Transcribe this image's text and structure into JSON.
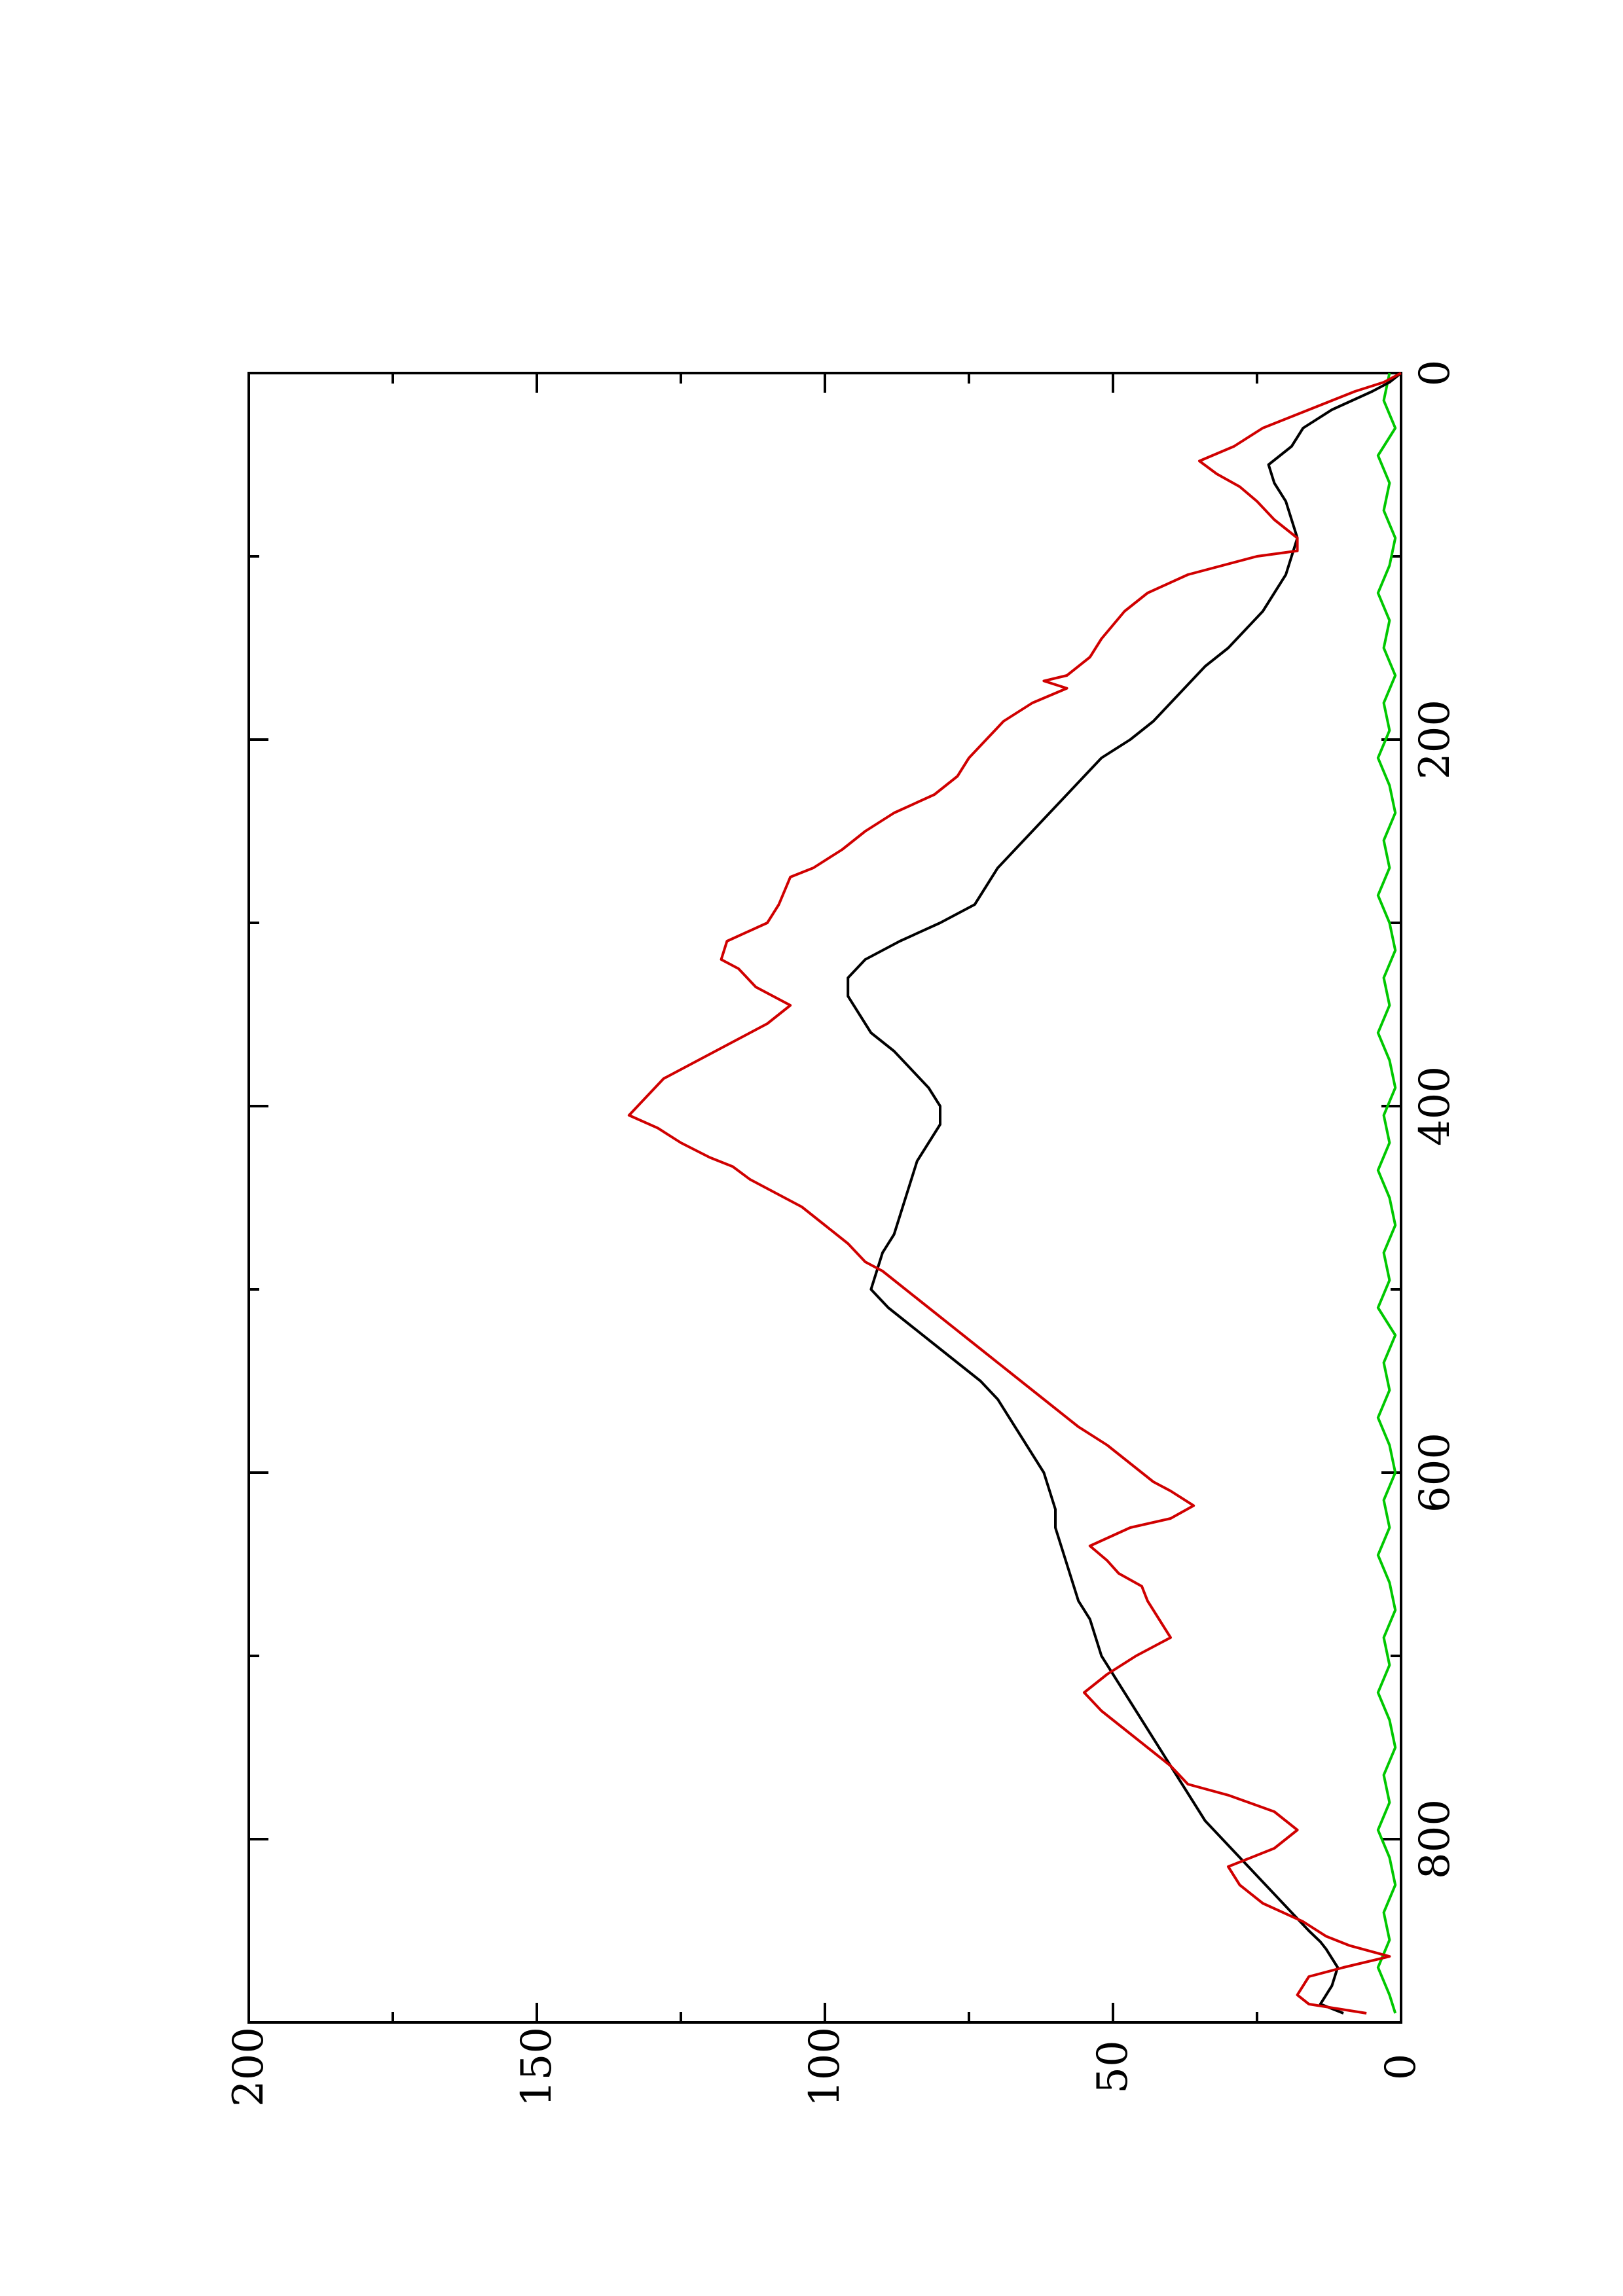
{
  "chart_data": {
    "type": "line",
    "orientation": "rotated-90-counterclockwise",
    "title": "",
    "xlabel": "",
    "ylabel": "",
    "xlim": [
      0,
      900
    ],
    "ylim": [
      0,
      200
    ],
    "x_ticks": [
      0,
      200,
      400,
      600,
      800
    ],
    "y_ticks": [
      0,
      50,
      100,
      150,
      200
    ],
    "x_minor_ticks": [
      100,
      300,
      500,
      700
    ],
    "y_minor_ticks": [
      25,
      75,
      125,
      175
    ],
    "grid": false,
    "legend": "none",
    "series": [
      {
        "color": "#d00000",
        "x": [
          0,
          5,
          10,
          20,
          30,
          40,
          48,
          55,
          62,
          70,
          80,
          90,
          97,
          100,
          110,
          120,
          130,
          145,
          155,
          165,
          168,
          172,
          180,
          190,
          200,
          210,
          220,
          230,
          240,
          250,
          260,
          270,
          275,
          290,
          300,
          310,
          320,
          325,
          335,
          345,
          355,
          365,
          375,
          385,
          395,
          405,
          412,
          420,
          428,
          433,
          440,
          445,
          455,
          465,
          475,
          485,
          490,
          495,
          505,
          515,
          525,
          535,
          545,
          555,
          565,
          575,
          585,
          595,
          605,
          610,
          618,
          625,
          630,
          640,
          648,
          655,
          662,
          670,
          675,
          690,
          700,
          710,
          720,
          730,
          740,
          750,
          760,
          770,
          776,
          785,
          795,
          805,
          815,
          825,
          835,
          845,
          853,
          858,
          864,
          870,
          875,
          885,
          890,
          895
        ],
        "values": [
          0,
          3,
          8,
          16,
          24,
          29,
          35,
          32,
          28,
          25,
          22,
          18,
          18,
          25,
          37,
          44,
          48,
          52,
          54,
          58,
          62,
          58,
          64,
          69,
          72,
          75,
          77,
          81,
          88,
          93,
          97,
          102,
          106,
          108,
          110,
          117,
          118,
          115,
          112,
          106,
          110,
          116,
          122,
          128,
          131,
          134,
          129,
          125,
          120,
          116,
          113,
          110,
          104,
          100,
          96,
          93,
          90,
          88,
          84,
          80,
          76,
          72,
          68,
          64,
          60,
          56,
          51,
          47,
          43,
          40,
          36,
          40,
          47,
          54,
          51,
          49,
          45,
          44,
          43,
          40,
          46,
          51,
          55,
          52,
          48,
          44,
          40,
          37,
          30,
          22,
          18,
          22,
          30,
          28,
          24,
          17,
          13,
          9,
          2,
          10,
          16,
          18,
          16,
          6
        ]
      },
      {
        "color": "#000000",
        "x": [
          0,
          5,
          10,
          20,
          30,
          40,
          50,
          60,
          70,
          80,
          90,
          100,
          110,
          120,
          130,
          140,
          150,
          160,
          170,
          180,
          190,
          200,
          210,
          220,
          230,
          240,
          250,
          260,
          270,
          280,
          290,
          300,
          310,
          320,
          330,
          340,
          350,
          360,
          370,
          380,
          390,
          400,
          410,
          420,
          430,
          440,
          450,
          460,
          470,
          480,
          490,
          500,
          510,
          520,
          530,
          540,
          550,
          560,
          570,
          580,
          590,
          600,
          610,
          620,
          630,
          640,
          650,
          660,
          670,
          680,
          690,
          700,
          710,
          720,
          730,
          740,
          750,
          760,
          770,
          780,
          790,
          800,
          810,
          820,
          830,
          840,
          850,
          856,
          860,
          865,
          870,
          880,
          885,
          890,
          895
        ],
        "values": [
          0,
          2,
          5,
          12,
          17,
          19,
          23,
          22,
          20,
          19,
          18,
          19,
          20,
          22,
          24,
          27,
          30,
          34,
          37,
          40,
          43,
          47,
          52,
          55,
          58,
          61,
          64,
          67,
          70,
          72,
          74,
          80,
          87,
          93,
          96,
          96,
          94,
          92,
          88,
          85,
          82,
          80,
          80,
          82,
          84,
          85,
          86,
          87,
          88,
          90,
          91,
          92,
          89,
          85,
          81,
          77,
          73,
          70,
          68,
          66,
          64,
          62,
          61,
          60,
          60,
          59,
          58,
          57,
          56,
          54,
          53,
          52,
          50,
          48,
          46,
          44,
          42,
          40,
          38,
          36,
          34,
          31,
          28,
          25,
          22,
          19,
          16,
          14,
          13,
          12,
          11,
          12,
          13,
          14,
          10
        ]
      },
      {
        "color": "#00c800",
        "x": [
          0,
          15,
          30,
          45,
          60,
          75,
          90,
          105,
          120,
          135,
          150,
          165,
          180,
          195,
          210,
          225,
          240,
          255,
          270,
          285,
          300,
          315,
          330,
          345,
          360,
          375,
          390,
          405,
          420,
          435,
          450,
          465,
          480,
          495,
          510,
          525,
          540,
          555,
          570,
          585,
          600,
          615,
          630,
          645,
          660,
          675,
          690,
          705,
          720,
          735,
          750,
          765,
          780,
          795,
          810,
          825,
          840,
          855,
          870,
          885,
          895
        ],
        "values": [
          2,
          3,
          1,
          4,
          2,
          3,
          1,
          2,
          4,
          2,
          3,
          1,
          3,
          2,
          4,
          2,
          1,
          3,
          2,
          4,
          2,
          1,
          3,
          2,
          4,
          2,
          1,
          3,
          2,
          4,
          2,
          1,
          3,
          2,
          4,
          1,
          3,
          2,
          4,
          2,
          1,
          3,
          2,
          4,
          2,
          1,
          3,
          2,
          4,
          2,
          1,
          3,
          2,
          4,
          2,
          1,
          3,
          2,
          4,
          2,
          1
        ]
      }
    ]
  }
}
